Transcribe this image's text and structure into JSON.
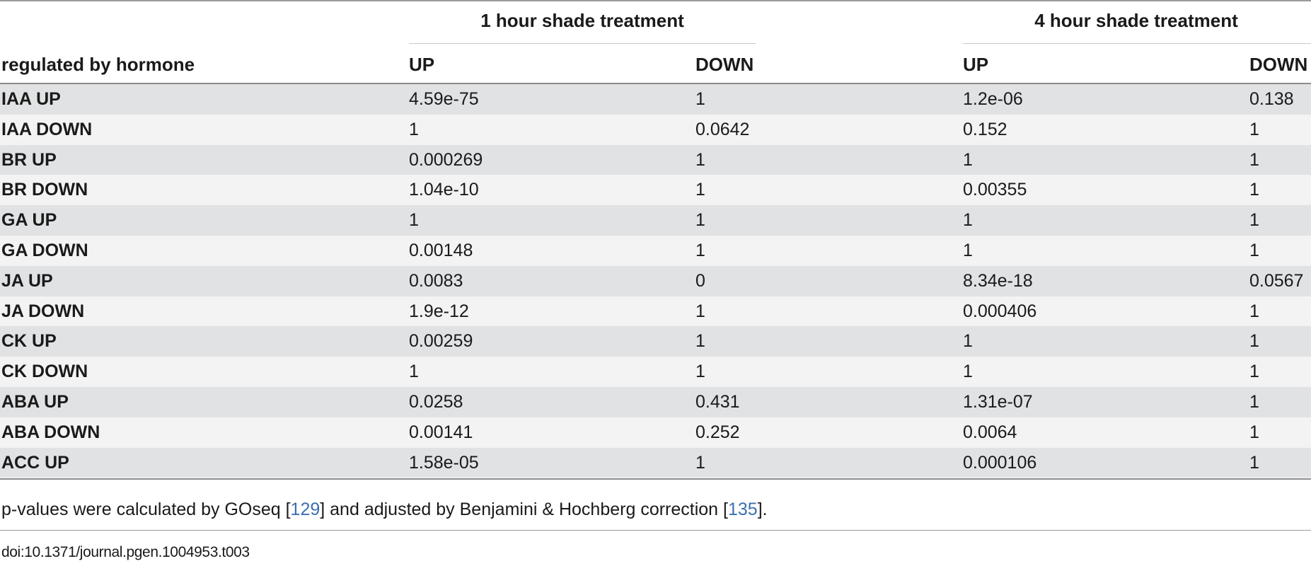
{
  "table": {
    "group_headers": [
      "1 hour shade treatment",
      "4 hour shade treatment"
    ],
    "row_header_label": "regulated by hormone",
    "column_headers": [
      "UP",
      "DOWN",
      "UP",
      "DOWN"
    ],
    "rows": [
      {
        "label": "IAA UP",
        "values": [
          "4.59e-75",
          "1",
          "1.2e-06",
          "0.138"
        ]
      },
      {
        "label": "IAA DOWN",
        "values": [
          "1",
          "0.0642",
          "0.152",
          "1"
        ]
      },
      {
        "label": "BR UP",
        "values": [
          "0.000269",
          "1",
          "1",
          "1"
        ]
      },
      {
        "label": "BR DOWN",
        "values": [
          "1.04e-10",
          "1",
          "0.00355",
          "1"
        ]
      },
      {
        "label": "GA UP",
        "values": [
          "1",
          "1",
          "1",
          "1"
        ]
      },
      {
        "label": "GA DOWN",
        "values": [
          "0.00148",
          "1",
          "1",
          "1"
        ]
      },
      {
        "label": "JA UP",
        "values": [
          "0.0083",
          "0",
          "8.34e-18",
          "0.0567"
        ]
      },
      {
        "label": "JA DOWN",
        "values": [
          "1.9e-12",
          "1",
          "0.000406",
          "1"
        ]
      },
      {
        "label": "CK UP",
        "values": [
          "0.00259",
          "1",
          "1",
          "1"
        ]
      },
      {
        "label": "CK DOWN",
        "values": [
          "1",
          "1",
          "1",
          "1"
        ]
      },
      {
        "label": "ABA UP",
        "values": [
          "0.0258",
          "0.431",
          "1.31e-07",
          "1"
        ]
      },
      {
        "label": "ABA DOWN",
        "values": [
          "0.00141",
          "0.252",
          "0.0064",
          "1"
        ]
      },
      {
        "label": "ACC UP",
        "values": [
          "1.58e-05",
          "1",
          "0.000106",
          "1"
        ]
      }
    ]
  },
  "footnote": {
    "text_before": "p-values were calculated by GOseq [",
    "ref1": "129",
    "text_middle": "] and adjusted by Benjamini & Hochberg correction [",
    "ref2": "135",
    "text_after": "]."
  },
  "doi": "doi:10.1371/journal.pgen.1004953.t003",
  "colors": {
    "shaded_row": "#e1e2e4",
    "light_row": "#f3f3f3",
    "link": "#3b6fb0"
  }
}
